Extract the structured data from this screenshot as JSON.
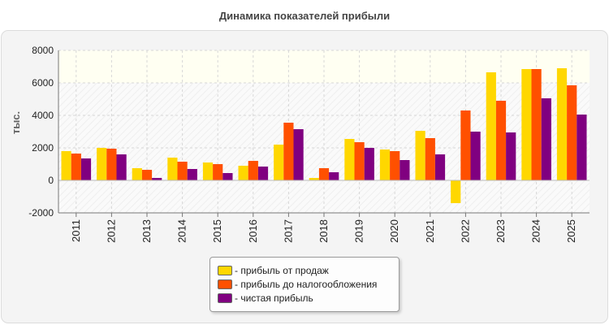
{
  "page": {
    "title": "Динамика показателей прибыли"
  },
  "chart_data": {
    "type": "bar",
    "ylabel": "тыс.",
    "xlabel": "",
    "ylim": [
      -2000,
      8000
    ],
    "yticks": [
      8000,
      6000,
      4000,
      2000,
      0,
      -2000
    ],
    "grid": true,
    "legend_position": "bottom-center",
    "categories": [
      "2011",
      "2012",
      "2013",
      "2014",
      "2015",
      "2016",
      "2017",
      "2018",
      "2019",
      "2020",
      "2021",
      "2022",
      "2023",
      "2024",
      "2025"
    ],
    "series": [
      {
        "name": "- прибыль от продаж",
        "color": "#ffd700",
        "values": [
          1800,
          2000,
          750,
          1400,
          1100,
          900,
          2200,
          150,
          2550,
          1900,
          3050,
          -1400,
          6650,
          6850,
          6900
        ]
      },
      {
        "name": "- прибыль до налогообложения",
        "color": "#ff5000",
        "values": [
          1650,
          1950,
          650,
          1150,
          1000,
          1200,
          3550,
          750,
          2350,
          1800,
          2600,
          4300,
          4900,
          6850,
          5850
        ]
      },
      {
        "name": "- чистая прибыль",
        "color": "#800080",
        "values": [
          1350,
          1600,
          150,
          700,
          450,
          850,
          3150,
          500,
          2000,
          1250,
          1600,
          3000,
          2950,
          5050,
          4050
        ]
      }
    ]
  }
}
